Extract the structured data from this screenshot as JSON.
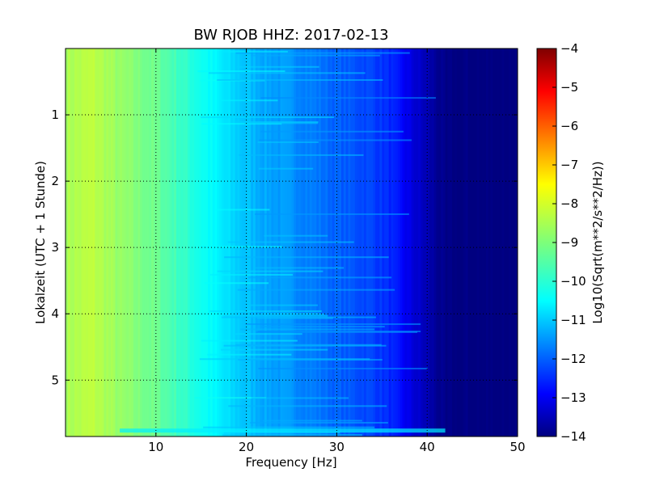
{
  "chart_data": {
    "type": "heatmap",
    "title": "BW RJOB HHZ: 2017-02-13",
    "xlabel": "Frequency [Hz]",
    "ylabel": "Lokalzeit (UTC + 1 Stunde)",
    "xlim": [
      0,
      50
    ],
    "ylim": [
      5.85,
      0
    ],
    "xticks": [
      10,
      20,
      30,
      40,
      50
    ],
    "yticks": [
      1,
      2,
      3,
      4,
      5
    ],
    "grid": true,
    "colorbar": {
      "label": "Log10(Sqrt(m**2/s**2/Hz))",
      "min": -14,
      "max": -4,
      "ticks": [
        -14,
        -13,
        -12,
        -11,
        -10,
        -9,
        -8,
        -7,
        -6,
        -5,
        -4
      ],
      "colormap": "jet"
    },
    "spectrum_profile": {
      "frequency_hz": [
        0,
        3,
        6,
        10,
        14,
        18,
        22,
        26,
        30,
        34,
        36,
        38,
        40,
        42,
        50
      ],
      "log_psd": [
        -8.6,
        -8.4,
        -8.8,
        -9.2,
        -9.9,
        -10.6,
        -11.1,
        -11.4,
        -11.8,
        -12.1,
        -12.4,
        -13.0,
        -13.5,
        -14.0,
        -14.0
      ]
    }
  }
}
